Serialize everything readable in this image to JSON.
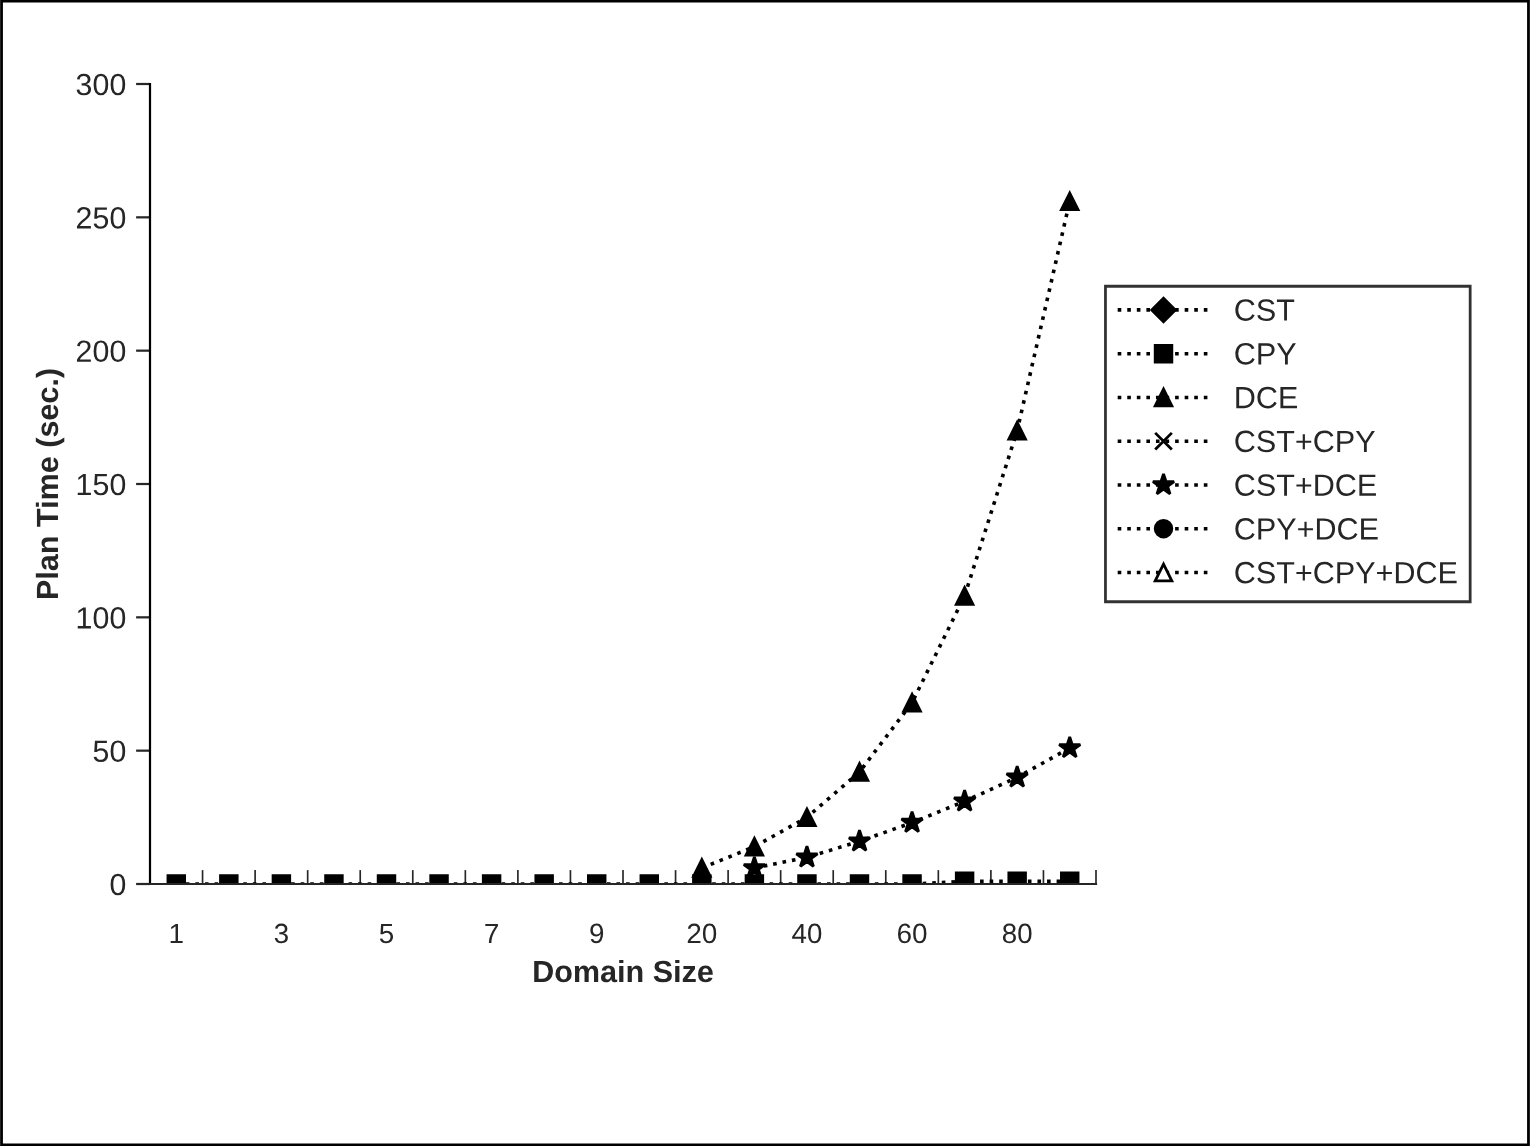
{
  "chart_data": {
    "type": "line",
    "xlabel": "Domain Size",
    "ylabel": "Plan Time (sec.)",
    "categories": [
      "1",
      null,
      "3",
      null,
      "5",
      null,
      "7",
      null,
      "9",
      null,
      "20",
      null,
      "40",
      null,
      "60",
      null,
      "80",
      null
    ],
    "ylim": [
      0,
      300
    ],
    "yticks": [
      0,
      50,
      100,
      150,
      200,
      250,
      300
    ],
    "grid": false,
    "legend": "right",
    "line_style": "dotted",
    "series": [
      {
        "name": "CST",
        "color": "#000000",
        "marker": "diamond",
        "values": [
          null,
          null,
          null,
          null,
          null,
          null,
          null,
          null,
          null,
          null,
          null,
          null,
          null,
          null,
          null,
          null,
          null,
          null
        ]
      },
      {
        "name": "CPY",
        "color": "#000000",
        "marker": "square",
        "values": [
          0,
          0,
          0,
          0,
          0,
          0,
          0,
          0,
          0,
          0,
          0,
          0,
          0,
          0,
          0,
          1,
          1,
          1
        ]
      },
      {
        "name": "DCE",
        "color": "#000000",
        "marker": "triangle",
        "values": [
          null,
          null,
          null,
          null,
          null,
          null,
          null,
          null,
          null,
          null,
          6,
          14,
          25,
          42,
          68,
          108,
          170,
          256
        ]
      },
      {
        "name": "CST+CPY",
        "color": "#000000",
        "marker": "cross",
        "values": [
          null,
          null,
          null,
          null,
          null,
          null,
          null,
          null,
          null,
          null,
          null,
          null,
          null,
          null,
          null,
          null,
          null,
          null
        ]
      },
      {
        "name": "CST+DCE",
        "color": "#000000",
        "marker": "star",
        "values": [
          null,
          null,
          null,
          null,
          null,
          null,
          null,
          null,
          null,
          null,
          null,
          6,
          10,
          16,
          23,
          31,
          40,
          51
        ]
      },
      {
        "name": "CPY+DCE",
        "color": "#000000",
        "marker": "circle",
        "values": [
          null,
          null,
          null,
          null,
          null,
          null,
          null,
          null,
          null,
          null,
          null,
          null,
          null,
          null,
          null,
          null,
          null,
          null
        ]
      },
      {
        "name": "CST+CPY+DCE",
        "color": "#000000",
        "marker": "triangle",
        "values": [
          null,
          null,
          null,
          null,
          null,
          null,
          null,
          null,
          null,
          null,
          null,
          null,
          null,
          null,
          null,
          null,
          null,
          null
        ]
      }
    ]
  }
}
